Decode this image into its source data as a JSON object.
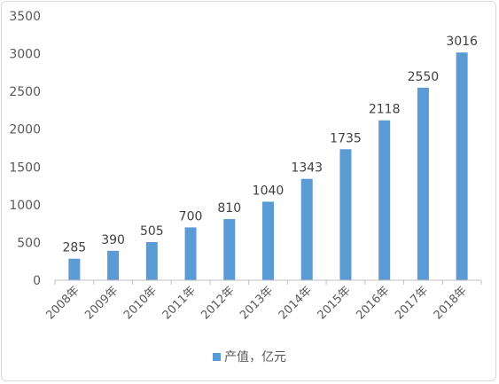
{
  "chart_data": {
    "type": "bar",
    "categories": [
      "2008年",
      "2009年",
      "2010年",
      "2011年",
      "2012年",
      "2013年",
      "2014年",
      "2015年",
      "2016年",
      "2017年",
      "2018年"
    ],
    "series": [
      {
        "name": "产值，亿元",
        "values": [
          285,
          390,
          505,
          700,
          810,
          1040,
          1343,
          1735,
          2118,
          2550,
          3016
        ]
      }
    ],
    "ylim": [
      0,
      3500
    ],
    "yticks": [
      0,
      500,
      1000,
      1500,
      2000,
      2500,
      3000,
      3500
    ],
    "grid": false,
    "data_labels": true,
    "legend_position": "bottom",
    "bar_color": "#5b9bd5"
  }
}
